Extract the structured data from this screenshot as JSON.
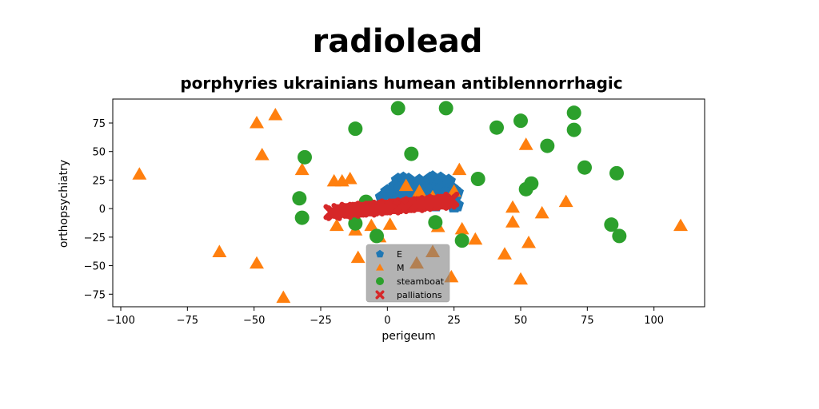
{
  "chart_data": {
    "type": "scatter",
    "title": "radiolead",
    "subtitle": "porphyries ukrainians humean antiblennorrhagic",
    "xlabel": "perigeum",
    "ylabel": "orthopsychiatry",
    "xlim": [
      -103,
      119
    ],
    "ylim": [
      -86,
      96
    ],
    "xticks": [
      -100,
      -75,
      -50,
      -25,
      0,
      25,
      50,
      75,
      100
    ],
    "yticks": [
      -75,
      -50,
      -25,
      0,
      25,
      50,
      75
    ],
    "grid": false,
    "legend_position": "lower center",
    "series": [
      {
        "name": "E",
        "marker": "pentagon",
        "color": "#1f77b4",
        "points": [
          [
            3,
            20
          ],
          [
            4,
            25
          ],
          [
            6,
            26
          ],
          [
            7,
            22
          ],
          [
            8,
            25
          ],
          [
            10,
            20
          ],
          [
            12,
            24
          ],
          [
            14,
            22
          ],
          [
            15,
            18
          ],
          [
            16,
            26
          ],
          [
            17,
            27
          ],
          [
            18,
            24
          ],
          [
            19,
            20
          ],
          [
            20,
            26
          ],
          [
            21,
            22
          ],
          [
            22,
            19
          ],
          [
            23,
            24
          ],
          [
            24,
            18
          ],
          [
            25,
            16
          ],
          [
            26,
            14
          ],
          [
            25,
            8
          ],
          [
            24,
            5
          ],
          [
            22,
            8
          ],
          [
            20,
            5
          ],
          [
            18,
            3
          ],
          [
            16,
            8
          ],
          [
            14,
            9
          ],
          [
            12,
            10
          ],
          [
            10,
            12
          ],
          [
            8,
            14
          ],
          [
            6,
            12
          ],
          [
            5,
            15
          ],
          [
            2,
            12
          ],
          [
            0,
            15
          ],
          [
            -2,
            10
          ],
          [
            4,
            8
          ],
          [
            9,
            5
          ],
          [
            25,
            2
          ],
          [
            26,
            3
          ],
          [
            5,
            18
          ],
          [
            13,
            15
          ],
          [
            19,
            15
          ],
          [
            22,
            13
          ],
          [
            15,
            13
          ]
        ]
      },
      {
        "name": "M",
        "marker": "triangle",
        "color": "#ff7f0e",
        "points": [
          [
            -93,
            30
          ],
          [
            -63,
            -38
          ],
          [
            -49,
            -48
          ],
          [
            -49,
            75
          ],
          [
            -47,
            47
          ],
          [
            -42,
            82
          ],
          [
            -39,
            -78
          ],
          [
            -32,
            34
          ],
          [
            -20,
            24
          ],
          [
            -17,
            24
          ],
          [
            -14,
            26
          ],
          [
            -19,
            -15
          ],
          [
            -12,
            -19
          ],
          [
            -11,
            -43
          ],
          [
            -6,
            -15
          ],
          [
            -3,
            -25
          ],
          [
            1,
            -14
          ],
          [
            7,
            20
          ],
          [
            7,
            5
          ],
          [
            11,
            -48
          ],
          [
            12,
            15
          ],
          [
            17,
            10
          ],
          [
            17,
            -38
          ],
          [
            19,
            -16
          ],
          [
            24,
            -60
          ],
          [
            25,
            15
          ],
          [
            27,
            34
          ],
          [
            28,
            -18
          ],
          [
            33,
            -27
          ],
          [
            44,
            -40
          ],
          [
            47,
            -12
          ],
          [
            47,
            1
          ],
          [
            50,
            -62
          ],
          [
            52,
            56
          ],
          [
            53,
            -30
          ],
          [
            58,
            -4
          ],
          [
            67,
            6
          ],
          [
            110,
            -15
          ]
        ]
      },
      {
        "name": "steamboat",
        "marker": "circle",
        "color": "#2ca02c",
        "points": [
          [
            4,
            88
          ],
          [
            22,
            88
          ],
          [
            -12,
            70
          ],
          [
            9,
            48
          ],
          [
            -31,
            45
          ],
          [
            41,
            71
          ],
          [
            50,
            77
          ],
          [
            60,
            55
          ],
          [
            70,
            84
          ],
          [
            70,
            69
          ],
          [
            74,
            36
          ],
          [
            86,
            31
          ],
          [
            34,
            26
          ],
          [
            52,
            17
          ],
          [
            54,
            22
          ],
          [
            -33,
            9
          ],
          [
            -32,
            -8
          ],
          [
            -8,
            6
          ],
          [
            -12,
            -13
          ],
          [
            -4,
            -24
          ],
          [
            18,
            -12
          ],
          [
            28,
            -28
          ],
          [
            84,
            -14
          ],
          [
            87,
            -24
          ]
        ]
      },
      {
        "name": "palliations",
        "marker": "x",
        "color": "#d62728",
        "points": [
          [
            -21,
            -3
          ],
          [
            -18,
            -2
          ],
          [
            -15,
            -1
          ],
          [
            -12,
            -1
          ],
          [
            -9,
            0
          ],
          [
            -6,
            0
          ],
          [
            -3,
            1
          ],
          [
            0,
            2
          ],
          [
            3,
            2
          ],
          [
            6,
            3
          ],
          [
            9,
            4
          ],
          [
            12,
            4
          ],
          [
            15,
            5
          ],
          [
            18,
            6
          ],
          [
            21,
            6
          ],
          [
            24,
            8
          ],
          [
            -20,
            -4
          ],
          [
            -16,
            -3
          ],
          [
            -13,
            -2
          ],
          [
            -10,
            -1
          ],
          [
            -7,
            -1
          ],
          [
            -4,
            0
          ],
          [
            -1,
            1
          ],
          [
            2,
            1
          ],
          [
            5,
            2
          ],
          [
            8,
            3
          ],
          [
            11,
            3
          ],
          [
            14,
            4
          ],
          [
            17,
            5
          ],
          [
            20,
            5
          ],
          [
            23,
            6
          ]
        ]
      }
    ]
  }
}
